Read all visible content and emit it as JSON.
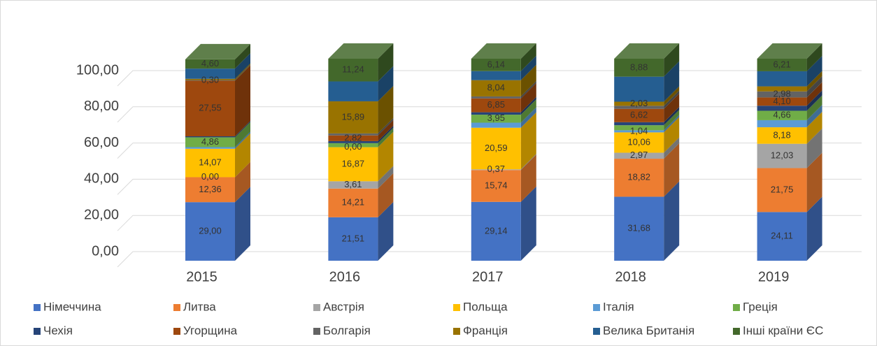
{
  "chart_data": {
    "type": "bar3d_stacked",
    "categories": [
      "2015",
      "2016",
      "2017",
      "2018",
      "2019"
    ],
    "ylim": [
      0,
      100
    ],
    "yticks": [
      {
        "value": 0,
        "label": "0,00"
      },
      {
        "value": 20,
        "label": "20,00"
      },
      {
        "value": 40,
        "label": "40,00"
      },
      {
        "value": 60,
        "label": "60,00"
      },
      {
        "value": 80,
        "label": "80,00"
      },
      {
        "value": 100,
        "label": "100,00"
      }
    ],
    "grid": true,
    "legend": "bottom",
    "series": [
      {
        "name": "Німеччина",
        "color": "#4472c4",
        "values": [
          29.0,
          21.51,
          29.14,
          31.68,
          24.11
        ],
        "value_labels": [
          "29,00",
          "21,51",
          "29,14",
          "31,68",
          "24,11"
        ]
      },
      {
        "name": "Литва",
        "color": "#ed7d31",
        "values": [
          12.36,
          14.21,
          15.74,
          18.82,
          21.75
        ],
        "value_labels": [
          "12,36",
          "14,21",
          "15,74",
          "18,82",
          "21,75"
        ]
      },
      {
        "name": "Австрія",
        "color": "#a5a5a5",
        "values": [
          0.0,
          3.61,
          0.37,
          2.97,
          12.03
        ],
        "value_labels": [
          "0,00",
          "3,61",
          "0,37",
          "2,97",
          "12,03"
        ]
      },
      {
        "name": "Польща",
        "color": "#ffc000",
        "values": [
          14.07,
          16.87,
          20.59,
          10.06,
          8.18
        ],
        "value_labels": [
          "14,07",
          "16,87",
          "20,59",
          "10,06",
          "8,18"
        ]
      },
      {
        "name": "Італія",
        "color": "#5b9bd5",
        "values": [
          0.8,
          0.0,
          2.5,
          1.04,
          3.5
        ],
        "value_labels": [
          null,
          "0,00",
          null,
          "1,04",
          null
        ]
      },
      {
        "name": "Греція",
        "color": "#70ad47",
        "values": [
          4.86,
          2.0,
          3.95,
          2.5,
          4.66
        ],
        "value_labels": [
          "4,86",
          null,
          "3,95",
          null,
          "4,66"
        ]
      },
      {
        "name": "Чехія",
        "color": "#264478",
        "values": [
          0.5,
          1.0,
          1.2,
          1.5,
          2.5
        ],
        "value_labels": [
          null,
          null,
          null,
          null,
          null
        ]
      },
      {
        "name": "Угорщина",
        "color": "#9e480e",
        "values": [
          27.55,
          2.82,
          6.85,
          6.62,
          4.1
        ],
        "value_labels": [
          "27,55",
          "2,82",
          "6,85",
          "6,62",
          "4,10"
        ]
      },
      {
        "name": "Болгарія",
        "color": "#636363",
        "values": [
          0.3,
          1.0,
          1.0,
          1.5,
          2.98
        ],
        "value_labels": [
          "0,30",
          null,
          null,
          null,
          "2,98"
        ]
      },
      {
        "name": "Франція",
        "color": "#997300",
        "values": [
          0.6,
          15.89,
          8.04,
          2.03,
          2.5
        ],
        "value_labels": [
          null,
          "15,89",
          "8,04",
          "2,03",
          null
        ]
      },
      {
        "name": "Велика Британія",
        "color": "#255e91",
        "values": [
          5.06,
          9.85,
          4.48,
          12.4,
          7.48
        ],
        "value_labels": [
          null,
          null,
          null,
          null,
          null
        ]
      },
      {
        "name": "Інші країни ЄС",
        "color": "#43682b",
        "values": [
          4.6,
          11.24,
          6.14,
          8.88,
          6.21
        ],
        "value_labels": [
          "4,60",
          "11,24",
          "6,14",
          "8,88",
          "6,21"
        ]
      }
    ]
  }
}
